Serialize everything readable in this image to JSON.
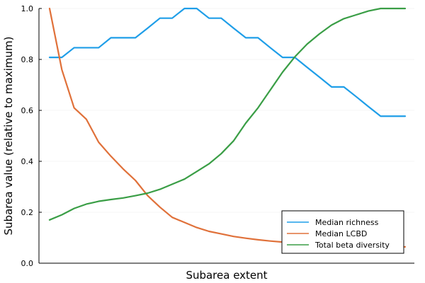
{
  "chart_data": {
    "type": "line",
    "title": "",
    "xlabel": "Subarea extent",
    "ylabel": "Subarea value (relative to maximum)",
    "ylim": [
      0,
      1
    ],
    "y_ticks": [
      0.0,
      0.2,
      0.4,
      0.6,
      0.8,
      1.0
    ],
    "y_tick_labels": [
      "0.0",
      "0.2",
      "0.4",
      "0.6",
      "0.8",
      "1.0"
    ],
    "x_ticks_shown": false,
    "grid": true,
    "legend_position": "bottom-right",
    "x": [
      1,
      2,
      3,
      4,
      5,
      6,
      7,
      8,
      9,
      10,
      11,
      12,
      13,
      14,
      15,
      16,
      17,
      18,
      19,
      20,
      21,
      22,
      23,
      24,
      25,
      26,
      27,
      28,
      29,
      30
    ],
    "series": [
      {
        "name": "Median richness",
        "color": "#1f9ee8",
        "values": [
          0.808,
          0.808,
          0.846,
          0.846,
          0.846,
          0.885,
          0.885,
          0.885,
          0.923,
          0.962,
          0.962,
          1.0,
          1.0,
          0.962,
          0.962,
          0.923,
          0.885,
          0.885,
          0.846,
          0.808,
          0.808,
          0.769,
          0.731,
          0.692,
          0.692,
          0.654,
          0.615,
          0.577,
          0.577,
          0.577
        ]
      },
      {
        "name": "Median LCBD",
        "color": "#e0713a",
        "values": [
          1.0,
          0.76,
          0.61,
          0.565,
          0.475,
          0.42,
          0.37,
          0.325,
          0.265,
          0.22,
          0.18,
          0.16,
          0.14,
          0.125,
          0.115,
          0.105,
          0.098,
          0.092,
          0.087,
          0.083,
          0.08,
          0.077,
          0.075,
          0.073,
          0.071,
          0.069,
          0.068,
          0.066,
          0.065,
          0.064
        ]
      },
      {
        "name": "Total beta diversity",
        "color": "#3a9e46",
        "values": [
          0.17,
          0.19,
          0.215,
          0.232,
          0.243,
          0.25,
          0.256,
          0.265,
          0.275,
          0.29,
          0.31,
          0.33,
          0.36,
          0.39,
          0.43,
          0.48,
          0.55,
          0.61,
          0.68,
          0.75,
          0.81,
          0.86,
          0.9,
          0.935,
          0.96,
          0.975,
          0.99,
          1.0,
          1.0,
          1.0
        ]
      }
    ]
  }
}
